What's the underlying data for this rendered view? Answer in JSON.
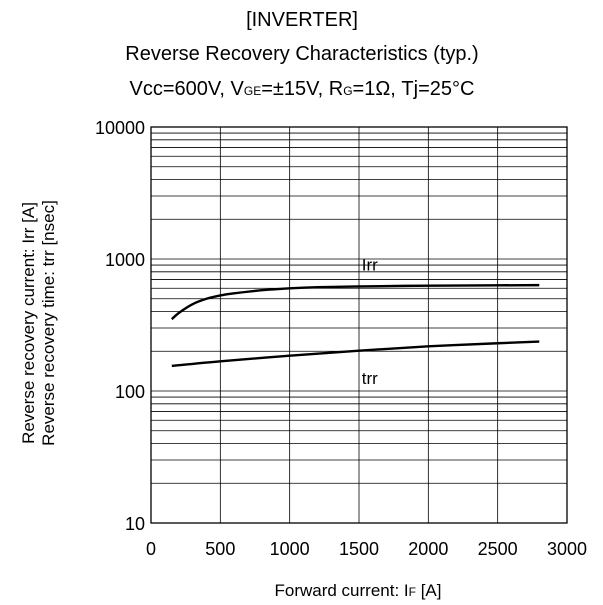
{
  "chart_data": {
    "type": "line",
    "title_lines": [
      "[INVERTER]",
      "Reverse Recovery Characteristics (typ.)"
    ],
    "conditions": {
      "vcc": "Vcc=600V, V",
      "vge_sub": "GE",
      "vge_val": "=±15V, R",
      "rg_sub": "G",
      "rg_val": "=1Ω, Tj=25°C"
    },
    "xlabel": {
      "prefix": "Forward current: I",
      "sub": "F",
      "suffix": " [A]"
    },
    "ylabel_lines": [
      "Reverse recovery current: Irr [A]",
      "Reverse recovery time: trr [nsec]"
    ],
    "xlim": [
      0,
      3000
    ],
    "ylim": [
      10,
      10000
    ],
    "yscale": "log",
    "grid": true,
    "x_ticks": [
      0,
      500,
      1000,
      1500,
      2000,
      2500,
      3000
    ],
    "y_ticks": [
      10,
      100,
      1000,
      10000
    ],
    "series": [
      {
        "name": "Irr",
        "x": [
          150,
          200,
          300,
          400,
          500,
          600,
          800,
          1000,
          1200,
          1500,
          2000,
          2500,
          2800
        ],
        "y": [
          350,
          390,
          455,
          500,
          530,
          550,
          580,
          600,
          612,
          620,
          628,
          632,
          634
        ]
      },
      {
        "name": "trr",
        "x": [
          150,
          500,
          1000,
          1500,
          2000,
          2500,
          2800
        ],
        "y": [
          155,
          168,
          185,
          202,
          218,
          230,
          237
        ]
      }
    ],
    "annotations": [
      {
        "text": "Irr",
        "x": 1520,
        "y": 820
      },
      {
        "text": "trr",
        "x": 1520,
        "y": 113
      }
    ]
  }
}
